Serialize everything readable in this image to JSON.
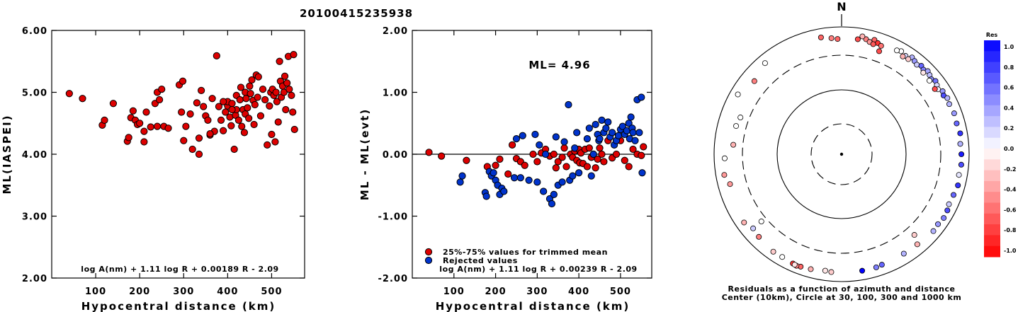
{
  "title": "20100415235938",
  "chart_data": [
    {
      "type": "scatter",
      "xlabel": "Hypocentral distance (km)",
      "ylabel": "ML(IASPEI)",
      "xlim": [
        0,
        575
      ],
      "ylim": [
        2.0,
        6.0
      ],
      "xticks": [
        {
          "v": 100,
          "label": "100"
        },
        {
          "v": 200,
          "label": "200"
        },
        {
          "v": 300,
          "label": "300"
        },
        {
          "v": 400,
          "label": "400"
        },
        {
          "v": 500,
          "label": "500"
        }
      ],
      "yticks": [
        {
          "v": 2,
          "label": "2.00"
        },
        {
          "v": 3,
          "label": "3.00"
        },
        {
          "v": 4,
          "label": "4.00"
        },
        {
          "v": 5,
          "label": "5.00"
        },
        {
          "v": 6,
          "label": "6.00"
        }
      ],
      "formula": "log A(nm) + 1.11 log R + 0.00189 R - 2.09",
      "point_color": "#dd0000",
      "series": [
        {
          "x": [
            40,
            70,
            115,
            120,
            140,
            172,
            175,
            180,
            185,
            190,
            195,
            200,
            210,
            210,
            215,
            225,
            235,
            240,
            240,
            245,
            250,
            255,
            265,
            290,
            295,
            298,
            300,
            305,
            315,
            320,
            330,
            335,
            335,
            340,
            345,
            350,
            355,
            360,
            365,
            370,
            375,
            380,
            385,
            390,
            395,
            400,
            400,
            405,
            408,
            410,
            415,
            418,
            420,
            420,
            425,
            428,
            430,
            432,
            435,
            438,
            440,
            440,
            442,
            445,
            448,
            450,
            452,
            455,
            458,
            460,
            462,
            465,
            468,
            470,
            475,
            480,
            485,
            490,
            495,
            498,
            500,
            502,
            505,
            508,
            510,
            512,
            515,
            518,
            520,
            522,
            525,
            528,
            530,
            532,
            535,
            538,
            540,
            545,
            548,
            550,
            552,
            410,
            390,
            360
          ],
          "y": [
            4.98,
            4.9,
            4.47,
            4.55,
            4.82,
            4.21,
            4.27,
            4.59,
            4.7,
            4.55,
            4.48,
            4.5,
            4.2,
            4.37,
            4.68,
            4.44,
            4.82,
            4.45,
            5.0,
            4.88,
            5.05,
            4.45,
            4.42,
            5.12,
            4.68,
            5.18,
            4.22,
            4.45,
            4.65,
            4.08,
            4.83,
            4.26,
            4.0,
            5.03,
            4.77,
            4.62,
            4.55,
            4.31,
            4.9,
            4.37,
            5.59,
            4.77,
            4.55,
            4.38,
            4.68,
            4.78,
            4.85,
            4.6,
            4.46,
            4.82,
            4.08,
            4.63,
            4.95,
            4.72,
            4.55,
            4.88,
            5.08,
            4.45,
            4.72,
            4.35,
            4.65,
            5.0,
            4.9,
            4.75,
            4.58,
            5.1,
            4.98,
            5.2,
            4.87,
            4.48,
            4.8,
            5.28,
            4.92,
            5.25,
            4.62,
            5.05,
            4.88,
            4.15,
            4.78,
            5.0,
            4.32,
            5.05,
            4.95,
            4.2,
            5.0,
            4.85,
            4.52,
            5.5,
            5.18,
            4.92,
            5.1,
            5.0,
            5.26,
            4.72,
            5.15,
            5.58,
            5.05,
            4.95,
            4.68,
            5.61,
            4.4,
            4.72,
            4.85,
            4.33
          ]
        }
      ]
    },
    {
      "type": "scatter",
      "xlabel": "Hypocentral distance (km)",
      "ylabel": "ML - ML(evt)",
      "xlim": [
        0,
        575
      ],
      "ylim": [
        -2.0,
        2.0
      ],
      "xticks": [
        {
          "v": 100,
          "label": "100"
        },
        {
          "v": 200,
          "label": "200"
        },
        {
          "v": 300,
          "label": "300"
        },
        {
          "v": 400,
          "label": "400"
        },
        {
          "v": 500,
          "label": "500"
        }
      ],
      "yticks": [
        {
          "v": -2,
          "label": "-2.00"
        },
        {
          "v": -1,
          "label": "-1.00"
        },
        {
          "v": 0,
          "label": "0.00"
        },
        {
          "v": 1,
          "label": "1.00"
        },
        {
          "v": 2,
          "label": "2.00"
        }
      ],
      "annotation": "ML= 4.96",
      "formula": "log A(nm) + 1.11 log R + 0.00239 R - 2.09",
      "zero_line": true,
      "series": [
        {
          "name": "25%-75% values for trimmed mean",
          "color": "#dd0000",
          "x": [
            40,
            70,
            130,
            180,
            200,
            210,
            230,
            240,
            250,
            260,
            270,
            290,
            300,
            310,
            320,
            330,
            340,
            345,
            350,
            360,
            365,
            370,
            380,
            385,
            390,
            395,
            400,
            402,
            405,
            410,
            415,
            420,
            425,
            430,
            435,
            440,
            445,
            450,
            455,
            460,
            470,
            480,
            490,
            500,
            510,
            520,
            530,
            540,
            550,
            555
          ],
          "y": [
            0.03,
            -0.03,
            -0.1,
            -0.2,
            -0.18,
            -0.08,
            -0.32,
            0.15,
            -0.07,
            -0.12,
            -0.18,
            0.0,
            -0.12,
            0.02,
            0.08,
            -0.03,
            0.0,
            -0.22,
            -0.12,
            -0.05,
            0.1,
            -0.2,
            0.0,
            -0.05,
            0.05,
            -0.1,
            0.08,
            -0.14,
            0.02,
            -0.15,
            0.08,
            -0.2,
            0.1,
            -0.05,
            0.0,
            -0.22,
            -0.08,
            0.1,
            0.0,
            -0.12,
            0.22,
            -0.06,
            0.0,
            0.22,
            -0.1,
            -0.2,
            0.08,
            0.0,
            -0.02,
            0.12
          ]
        },
        {
          "name": "Rejected values",
          "color": "#0033cc",
          "x": [
            115,
            120,
            175,
            178,
            185,
            190,
            195,
            200,
            205,
            210,
            215,
            220,
            245,
            250,
            260,
            265,
            280,
            295,
            300,
            305,
            315,
            320,
            330,
            335,
            340,
            345,
            350,
            360,
            365,
            375,
            378,
            385,
            390,
            395,
            400,
            420,
            425,
            430,
            435,
            440,
            445,
            448,
            450,
            455,
            460,
            465,
            470,
            475,
            480,
            485,
            490,
            495,
            500,
            505,
            510,
            515,
            520,
            522,
            525,
            528,
            530,
            535,
            540,
            545,
            550,
            552
          ],
          "y": [
            -0.45,
            -0.35,
            -0.62,
            -0.68,
            -0.28,
            -0.35,
            -0.3,
            -0.42,
            -0.5,
            -0.65,
            -0.55,
            -0.6,
            -0.38,
            0.25,
            -0.38,
            0.3,
            -0.42,
            0.32,
            -0.45,
            0.15,
            -0.6,
            0.0,
            -0.72,
            -0.8,
            -0.65,
            0.28,
            -0.5,
            -0.45,
            0.2,
            0.8,
            -0.42,
            -0.35,
            0.1,
            0.35,
            -0.3,
            0.25,
            0.42,
            -0.35,
            0.0,
            0.48,
            0.32,
            0.22,
            0.25,
            0.55,
            0.35,
            0.42,
            0.52,
            0.28,
            0.35,
            0.15,
            0.22,
            0.3,
            0.4,
            0.45,
            0.32,
            0.38,
            0.5,
            0.25,
            0.6,
            0.42,
            0.35,
            0.22,
            0.88,
            0.35,
            0.92,
            -0.3
          ]
        }
      ]
    },
    {
      "type": "scatter",
      "subtype": "polar",
      "north_label": "N",
      "caption_line1": "Residuals as a function of azimuth and distance",
      "caption_line2": "Center (10km), Circle at 30, 100, 300 and 1000 km",
      "rings_km": [
        30,
        100,
        300,
        1000
      ],
      "points": [
        [
          8,
          620,
          -0.7
        ],
        [
          12,
          660,
          -0.5
        ],
        [
          14,
          610,
          -0.4
        ],
        [
          16,
          700,
          -0.6
        ],
        [
          18,
          640,
          -0.8
        ],
        [
          10,
          720,
          -0.3
        ],
        [
          20,
          600,
          -0.55
        ],
        [
          16,
          580,
          -0.65
        ],
        [
          -5,
          630,
          -0.5
        ],
        [
          -10,
          690,
          -0.6
        ],
        [
          -2,
          600,
          -0.6
        ],
        [
          20,
          470,
          -0.7
        ],
        [
          30,
          700,
          0.0
        ],
        [
          33,
          650,
          0.15
        ],
        [
          36,
          720,
          0.3
        ],
        [
          38,
          680,
          0.4
        ],
        [
          40,
          640,
          0.2
        ],
        [
          42,
          700,
          0.6
        ],
        [
          44,
          660,
          0.5
        ],
        [
          46,
          720,
          0.35
        ],
        [
          48,
          680,
          0.25
        ],
        [
          50,
          640,
          0.45
        ],
        [
          52,
          700,
          0.55
        ],
        [
          54,
          660,
          0.15
        ],
        [
          56,
          620,
          0.05
        ],
        [
          58,
          700,
          0.4
        ],
        [
          60,
          660,
          0.7
        ],
        [
          62,
          720,
          0.3
        ],
        [
          35,
          620,
          -0.2
        ],
        [
          45,
          600,
          -0.1
        ],
        [
          50,
          580,
          0.0
        ],
        [
          55,
          560,
          -0.7
        ],
        [
          28,
          660,
          0.0
        ],
        [
          32,
          600,
          -0.3
        ],
        [
          65,
          690,
          0.3
        ],
        [
          70,
          720,
          0.4
        ],
        [
          75,
          700,
          0.6
        ],
        [
          80,
          740,
          0.8
        ],
        [
          85,
          700,
          0.3
        ],
        [
          90,
          720,
          0.9
        ],
        [
          95,
          730,
          0.7
        ],
        [
          100,
          700,
          0.1
        ],
        [
          105,
          740,
          0.8
        ],
        [
          110,
          700,
          0.6
        ],
        [
          115,
          680,
          0.2
        ],
        [
          118,
          720,
          0.7
        ],
        [
          122,
          740,
          0.5
        ],
        [
          126,
          700,
          0.4
        ],
        [
          130,
          720,
          0.3
        ],
        [
          140,
          660,
          -0.3
        ],
        [
          138,
          450,
          -0.2
        ],
        [
          148,
          650,
          0.3
        ],
        [
          160,
          660,
          0.6
        ],
        [
          163,
          680,
          0.5
        ],
        [
          170,
          680,
          1.0
        ],
        [
          185,
          680,
          -0.2
        ],
        [
          188,
          660,
          -0.1
        ],
        [
          195,
          700,
          -0.3
        ],
        [
          200,
          720,
          -0.6
        ],
        [
          202,
          740,
          -0.5
        ],
        [
          204,
          720,
          -0.8
        ],
        [
          203,
          730,
          -0.1
        ],
        [
          210,
          690,
          0.0
        ],
        [
          215,
          700,
          -0.2
        ],
        [
          225,
          640,
          -0.5
        ],
        [
          230,
          600,
          0.2
        ],
        [
          235,
          700,
          -0.3
        ],
        [
          260,
          700,
          -0.4
        ],
        [
          268,
          640,
          0.0
        ],
        [
          300,
          720,
          0.0
        ],
        [
          310,
          560,
          -0.5
        ],
        [
          320,
          700,
          0.0
        ],
        [
          285,
          460,
          0.0
        ],
        [
          290,
          430,
          0.0
        ],
        [
          275,
          450,
          -0.3
        ],
        [
          230,
          380,
          0.0
        ],
        [
          255,
          600,
          -0.4
        ]
      ],
      "colorbar": {
        "title": "Res",
        "labels": [
          "1.0",
          "0.8",
          "0.6",
          "0.4",
          "0.2",
          "0.0",
          "-0.2",
          "-0.4",
          "-0.6",
          "-0.8",
          "-1.0"
        ]
      }
    }
  ]
}
